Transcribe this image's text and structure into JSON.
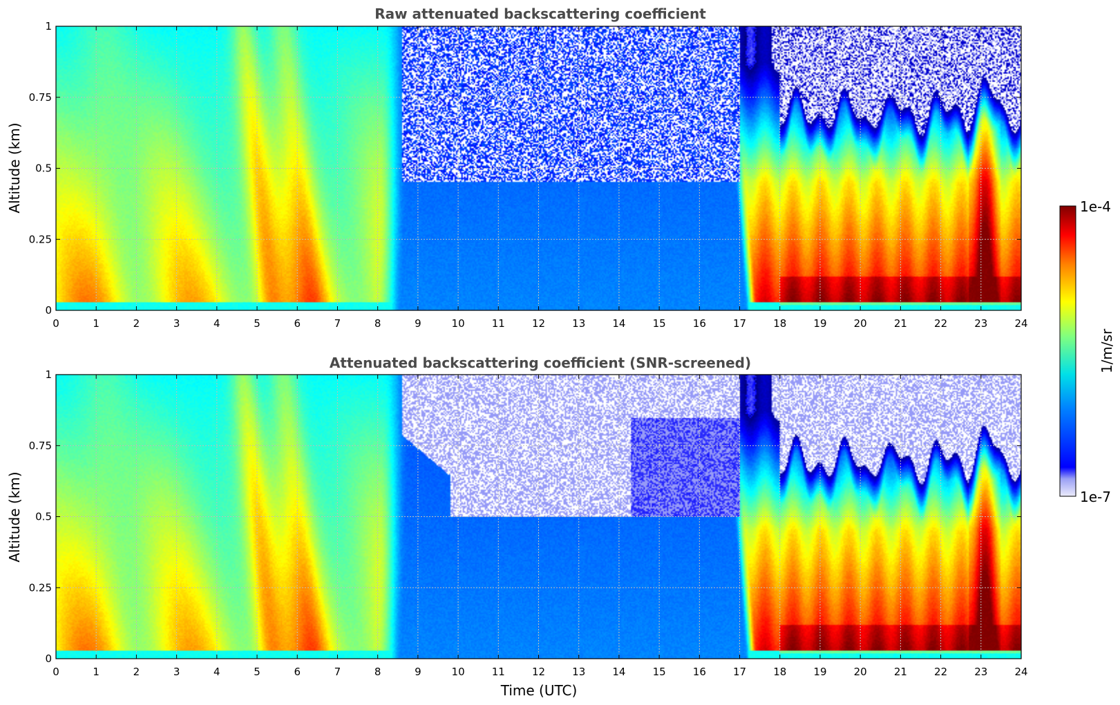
{
  "chart_data": [
    {
      "type": "heatmap",
      "title": "Raw attenuated backscattering coefficient",
      "xlabel": "",
      "ylabel": "Altitude (km)",
      "xlim": [
        0,
        24
      ],
      "ylim": [
        0,
        1
      ],
      "x_ticks": [
        "0",
        "1",
        "2",
        "3",
        "4",
        "5",
        "6",
        "7",
        "8",
        "9",
        "10",
        "11",
        "12",
        "13",
        "14",
        "15",
        "16",
        "17",
        "18",
        "19",
        "20",
        "21",
        "22",
        "23",
        "24"
      ],
      "y_ticks": [
        "0",
        "0.25",
        "0.5",
        "0.75",
        "1"
      ],
      "y_tick_values": [
        0,
        0.25,
        0.5,
        0.75,
        1
      ],
      "grid": true,
      "colorscale": "jet, log10 scale from 1e-7 to 1e-4",
      "screened": false
    },
    {
      "type": "heatmap",
      "title": "Attenuated backscattering coefficient (SNR-screened)",
      "xlabel": "Time (UTC)",
      "ylabel": "Altitude (km)",
      "xlim": [
        0,
        24
      ],
      "ylim": [
        0,
        1
      ],
      "x_ticks": [
        "0",
        "1",
        "2",
        "3",
        "4",
        "5",
        "6",
        "7",
        "8",
        "9",
        "10",
        "11",
        "12",
        "13",
        "14",
        "15",
        "16",
        "17",
        "18",
        "19",
        "20",
        "21",
        "22",
        "23",
        "24"
      ],
      "y_ticks": [
        "0",
        "0.25",
        "0.5",
        "0.75",
        "1"
      ],
      "y_tick_values": [
        0,
        0.25,
        0.5,
        0.75,
        1
      ],
      "grid": true,
      "colorscale": "jet, log10 scale from 1e-7 to 1e-4",
      "screened": true
    }
  ],
  "colorbar": {
    "label": "1/m/sr",
    "max_label": "1e-4",
    "min_label": "1e-7",
    "min": 1e-07,
    "max": 0.0001,
    "scale": "log"
  }
}
